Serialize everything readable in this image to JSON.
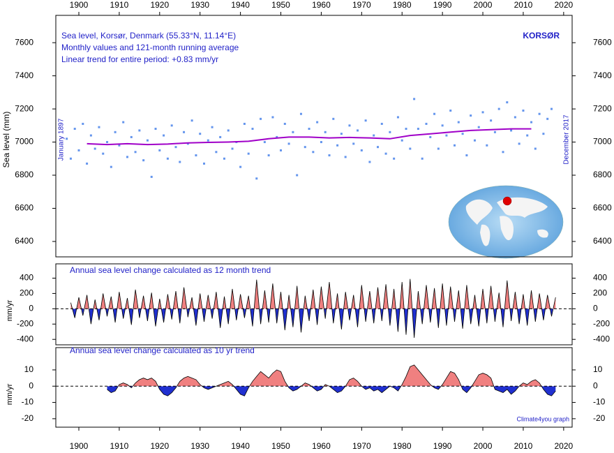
{
  "chart_data": [
    {
      "type": "scatter",
      "title": "Sea level, Korsør, Denmark (55.33°N, 11.14°E)",
      "subtitle": "Monthly values and 121-month running average",
      "annotations": [
        "Linear trend for entire period: +0.83 mm/yr",
        "KORSØR",
        "January 1897",
        "December 2017"
      ],
      "ylabel": "Sea level (mm)",
      "xlim": [
        1894.3,
        2022.1
      ],
      "xticks": [
        1900,
        1910,
        1920,
        1930,
        1940,
        1950,
        1960,
        1970,
        1980,
        1990,
        2000,
        2010,
        2020
      ],
      "ylim": [
        6307,
        7765
      ],
      "yticks": [
        6400,
        6600,
        6800,
        7000,
        7200,
        7400,
        7600
      ],
      "series": [
        {
          "type": "scatter",
          "color": "#6495ed",
          "x": [
            1897,
            1898,
            1899,
            1900,
            1901,
            1902,
            1903,
            1904,
            1905,
            1906,
            1907,
            1908,
            1909,
            1910,
            1911,
            1912,
            1913,
            1914,
            1915,
            1916,
            1917,
            1918,
            1919,
            1920,
            1921,
            1922,
            1923,
            1924,
            1925,
            1926,
            1927,
            1928,
            1929,
            1930,
            1931,
            1932,
            1933,
            1934,
            1935,
            1936,
            1937,
            1938,
            1939,
            1940,
            1941,
            1942,
            1943,
            1944,
            1945,
            1946,
            1947,
            1948,
            1949,
            1950,
            1951,
            1952,
            1953,
            1954,
            1955,
            1956,
            1957,
            1958,
            1959,
            1960,
            1961,
            1962,
            1963,
            1964,
            1965,
            1966,
            1967,
            1968,
            1969,
            1970,
            1971,
            1972,
            1973,
            1974,
            1975,
            1976,
            1977,
            1978,
            1979,
            1980,
            1981,
            1982,
            1983,
            1984,
            1985,
            1986,
            1987,
            1988,
            1989,
            1990,
            1991,
            1992,
            1993,
            1994,
            1995,
            1996,
            1997,
            1998,
            1999,
            2000,
            2001,
            2002,
            2003,
            2004,
            2005,
            2006,
            2007,
            2008,
            2009,
            2010,
            2011,
            2012,
            2013,
            2014,
            2015,
            2016,
            2017
          ],
          "values": [
            7020,
            6900,
            7080,
            6950,
            7110,
            6870,
            7040,
            6960,
            7090,
            6930,
            7000,
            6850,
            7060,
            6980,
            7120,
            6910,
            7030,
            6940,
            7070,
            6890,
            7010,
            6790,
            7080,
            6950,
            7040,
            6900,
            7100,
            6970,
            6880,
            7060,
            6990,
            7130,
            6920,
            7050,
            6870,
            7010,
            7090,
            6940,
            7030,
            6900,
            7070,
            6960,
            7000,
            6850,
            7110,
            6930,
            7080,
            6780,
            7140,
            7000,
            6920,
            7150,
            7030,
            6950,
            7110,
            6990,
            7060,
            6800,
            7170,
            6970,
            7080,
            6940,
            7120,
            7000,
            7060,
            6920,
            7140,
            6980,
            7050,
            6910,
            7100,
            6990,
            7070,
            6950,
            7130,
            6880,
            7040,
            6970,
            7110,
            6930,
            7060,
            6900,
            7150,
            7010,
            7080,
            6960,
            7260,
            7080,
            6900,
            7110,
            7030,
            7170,
            6960,
            7100,
            7040,
            7190,
            6980,
            7120,
            7050,
            6920,
            7160,
            7010,
            7090,
            7180,
            6980,
            7130,
            7060,
            7200,
            6940,
            7240,
            7070,
            7150,
            6990,
            7190,
            7040,
            7120,
            6960,
            7170,
            7050,
            7140,
            7200
          ]
        },
        {
          "type": "line",
          "color": "#a000c8",
          "x": [
            1902,
            1907,
            1912,
            1917,
            1922,
            1927,
            1932,
            1937,
            1942,
            1947,
            1952,
            1957,
            1962,
            1967,
            1972,
            1977,
            1982,
            1987,
            1992,
            1997,
            2002,
            2007,
            2012
          ],
          "values": [
            6990,
            6985,
            6990,
            6985,
            6988,
            6995,
            6998,
            7000,
            7005,
            7020,
            7030,
            7030,
            7025,
            7028,
            7025,
            7020,
            7040,
            7050,
            7060,
            7070,
            7075,
            7080,
            7080
          ]
        }
      ]
    },
    {
      "type": "area",
      "title": "Annual sea level change calculated as 12 month trend",
      "ylabel": "mm/yr",
      "xlim": [
        1894.3,
        2022.1
      ],
      "ylim": [
        -471,
        587
      ],
      "yticks": [
        -400,
        -200,
        0,
        200,
        400
      ],
      "positive_color": "#f08080",
      "negative_color": "#2030d0",
      "series": [
        {
          "color": "#000000",
          "x": [
            1898,
            1899,
            1900,
            1901,
            1902,
            1903,
            1904,
            1905,
            1906,
            1907,
            1908,
            1909,
            1910,
            1911,
            1912,
            1913,
            1914,
            1915,
            1916,
            1917,
            1918,
            1919,
            1920,
            1921,
            1922,
            1923,
            1924,
            1925,
            1926,
            1927,
            1928,
            1929,
            1930,
            1931,
            1932,
            1933,
            1934,
            1935,
            1936,
            1937,
            1938,
            1939,
            1940,
            1941,
            1942,
            1943,
            1944,
            1945,
            1946,
            1947,
            1948,
            1949,
            1950,
            1951,
            1952,
            1953,
            1954,
            1955,
            1956,
            1957,
            1958,
            1959,
            1960,
            1961,
            1962,
            1963,
            1964,
            1965,
            1966,
            1967,
            1968,
            1969,
            1970,
            1971,
            1972,
            1973,
            1974,
            1975,
            1976,
            1977,
            1978,
            1979,
            1980,
            1981,
            1982,
            1983,
            1984,
            1985,
            1986,
            1987,
            1988,
            1989,
            1990,
            1991,
            1992,
            1993,
            1994,
            1995,
            1996,
            1997,
            1998,
            1999,
            2000,
            2001,
            2002,
            2003,
            2004,
            2005,
            2006,
            2007,
            2008,
            2009,
            2010,
            2011,
            2012,
            2013,
            2014,
            2015,
            2016,
            2017,
            2018
          ],
          "values": [
            80,
            -120,
            150,
            -90,
            180,
            -200,
            120,
            -150,
            200,
            -100,
            160,
            -180,
            220,
            -130,
            140,
            -210,
            250,
            -120,
            170,
            -160,
            210,
            -230,
            130,
            -180,
            190,
            -140,
            230,
            -190,
            280,
            -110,
            150,
            -220,
            200,
            -170,
            180,
            -130,
            220,
            -250,
            160,
            -200,
            260,
            -150,
            190,
            -120,
            170,
            -230,
            380,
            -200,
            240,
            -180,
            330,
            -190,
            220,
            -280,
            180,
            -240,
            300,
            -310,
            170,
            -160,
            250,
            -210,
            290,
            -130,
            350,
            -190,
            200,
            -270,
            220,
            -150,
            180,
            -240,
            310,
            -170,
            230,
            -190,
            280,
            -160,
            320,
            -220,
            260,
            -300,
            350,
            -340,
            390,
            -380,
            230,
            -200,
            310,
            -180,
            270,
            -250,
            330,
            -220,
            290,
            -170,
            240,
            -260,
            310,
            -200,
            180,
            -230,
            260,
            -190,
            300,
            -170,
            210,
            -240,
            370,
            -160,
            220,
            -200,
            190,
            -220,
            240,
            -170,
            200,
            -150,
            180,
            -100,
            150
          ]
        }
      ]
    },
    {
      "type": "area",
      "title": "Annual sea level change calculated as 10 yr trend",
      "ylabel": "mm/yr",
      "annotations": [
        "Climate4you graph"
      ],
      "xlim": [
        1894.3,
        2022.1
      ],
      "xticks": [
        1900,
        1910,
        1920,
        1930,
        1940,
        1950,
        1960,
        1970,
        1980,
        1990,
        2000,
        2010,
        2020
      ],
      "ylim": [
        -25.2,
        23.7
      ],
      "yticks": [
        -20,
        -10,
        0,
        10
      ],
      "positive_color": "#f08080",
      "negative_color": "#2030d0",
      "series": [
        {
          "color": "#000000",
          "x": [
            1907,
            1908,
            1909,
            1910,
            1911,
            1912,
            1913,
            1914,
            1915,
            1916,
            1917,
            1918,
            1919,
            1920,
            1921,
            1922,
            1923,
            1924,
            1925,
            1926,
            1927,
            1928,
            1929,
            1930,
            1931,
            1932,
            1933,
            1934,
            1935,
            1936,
            1937,
            1938,
            1939,
            1940,
            1941,
            1942,
            1943,
            1944,
            1945,
            1946,
            1947,
            1948,
            1949,
            1950,
            1951,
            1952,
            1953,
            1954,
            1955,
            1956,
            1957,
            1958,
            1959,
            1960,
            1961,
            1962,
            1963,
            1964,
            1965,
            1966,
            1967,
            1968,
            1969,
            1970,
            1971,
            1972,
            1973,
            1974,
            1975,
            1976,
            1977,
            1978,
            1979,
            1980,
            1981,
            1982,
            1983,
            1984,
            1985,
            1986,
            1987,
            1988,
            1989,
            1990,
            1991,
            1992,
            1993,
            1994,
            1995,
            1996,
            1997,
            1998,
            1999,
            2000,
            2001,
            2002,
            2003,
            2004,
            2005,
            2006,
            2007,
            2008,
            2009,
            2010,
            2011,
            2012,
            2013,
            2014,
            2015,
            2016,
            2017,
            2018
          ],
          "values": [
            -2,
            -4,
            -3,
            1,
            2,
            1,
            -1,
            2,
            4,
            5,
            4,
            5,
            3,
            -2,
            -5,
            -6,
            -4,
            -1,
            3,
            5,
            6,
            5,
            4,
            1,
            -1,
            -2,
            -1,
            0,
            1,
            2,
            3,
            1,
            -2,
            -5,
            -6,
            -1,
            3,
            6,
            9,
            7,
            5,
            8,
            10,
            9,
            3,
            -1,
            -3,
            -2,
            0,
            2,
            1,
            -1,
            -3,
            -2,
            1,
            0,
            -2,
            -4,
            -3,
            0,
            4,
            5,
            3,
            0,
            -2,
            -1,
            -3,
            -2,
            -4,
            -2,
            0,
            -1,
            -3,
            1,
            6,
            12,
            13,
            10,
            7,
            4,
            1,
            -1,
            -2,
            1,
            5,
            9,
            8,
            4,
            -2,
            -4,
            -1,
            3,
            7,
            8,
            7,
            5,
            -2,
            -3,
            -4,
            -2,
            -5,
            -3,
            0,
            2,
            1,
            3,
            4,
            2,
            -2,
            -5,
            -6,
            -3
          ]
        }
      ]
    }
  ]
}
